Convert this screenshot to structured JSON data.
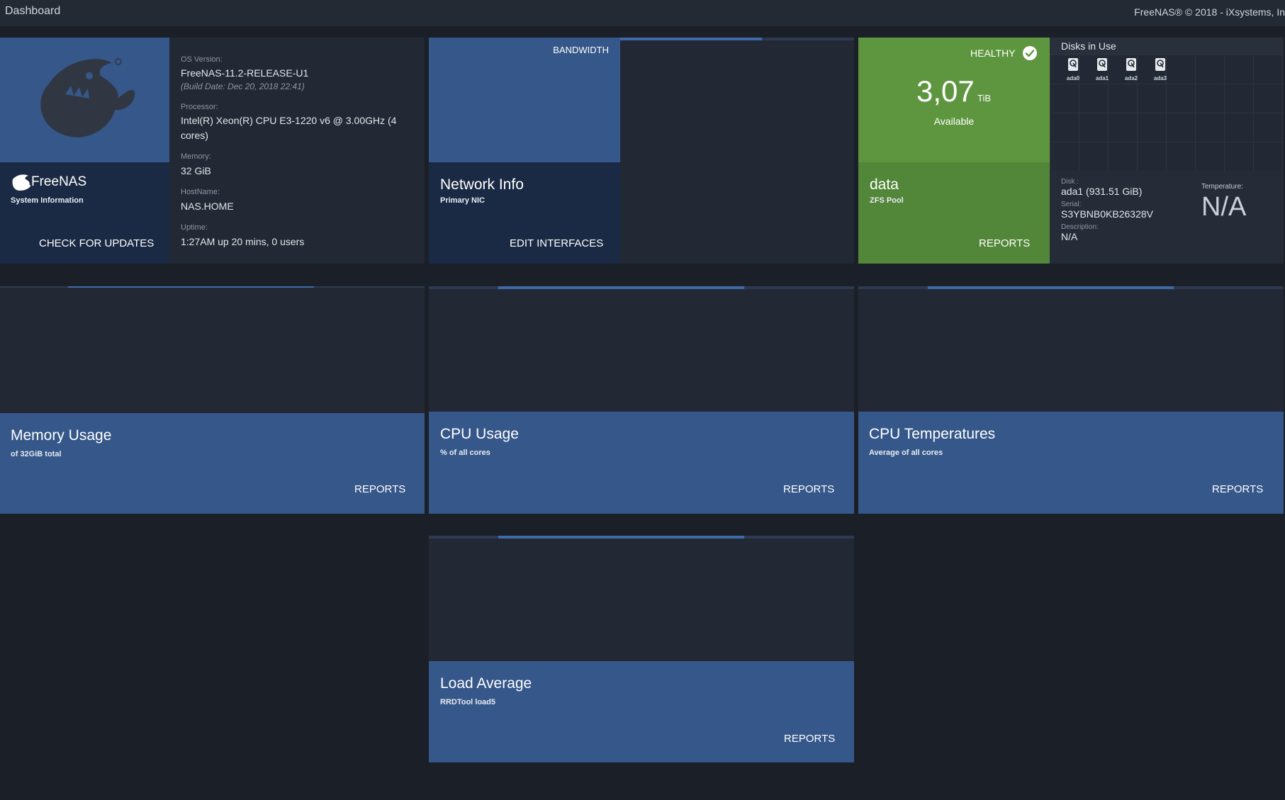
{
  "header": {
    "title": "Dashboard",
    "copyright": "FreeNAS® © 2018 - iXsystems, In"
  },
  "system_info": {
    "brand": "FreeNAS",
    "subtitle": "System Information",
    "check_updates": "CHECK FOR UPDATES",
    "os_version_label": "OS Version:",
    "os_version": "FreeNAS-11.2-RELEASE-U1",
    "build_date": "(Build Date: Dec 20, 2018 22:41)",
    "processor_label": "Processor:",
    "processor_line1": "Intel(R) Xeon(R) CPU E3-1220 v6 @ 3.00GHz (4",
    "processor_line2": "cores)",
    "memory_label": "Memory:",
    "memory": "32 GiB",
    "hostname_label": "HostName:",
    "hostname": "NAS.HOME",
    "uptime_label": "Uptime:",
    "uptime": "1:27AM up 20 mins, 0 users"
  },
  "network": {
    "bandwidth": "BANDWIDTH",
    "title": "Network Info",
    "subtitle": "Primary NIC",
    "edit_button": "EDIT INTERFACES"
  },
  "pool": {
    "status": "HEALTHY",
    "value": "3,07",
    "unit": "TiB",
    "available_label": "Available",
    "name": "data",
    "type": "ZFS Pool",
    "reports": "REPORTS"
  },
  "disks": {
    "title": "Disks in Use",
    "items": [
      "ada0",
      "ada1",
      "ada2",
      "ada3"
    ],
    "disk_label": "Disk :",
    "disk_value": "ada1 (931.51 GiB)",
    "serial_label": "Serial:",
    "serial_value": "S3YBNB0KB26328V",
    "description_label": "Description:",
    "description_value": "N/A",
    "temperature_label": "Temperature:",
    "temperature_value": "N/A"
  },
  "widgets": {
    "memory": {
      "title": "Memory Usage",
      "subtitle": "of 32GiB total",
      "reports": "REPORTS"
    },
    "cpu": {
      "title": "CPU Usage",
      "subtitle": "% of all cores",
      "reports": "REPORTS"
    },
    "cpu_temp": {
      "title": "CPU Temperatures",
      "subtitle": "Average of all cores",
      "reports": "REPORTS"
    },
    "load": {
      "title": "Load Average",
      "subtitle": "RRDTool load5",
      "reports": "REPORTS"
    }
  },
  "colors": {
    "background": "#1b1f27",
    "card": "#232934",
    "blue": "#355789",
    "navy": "#1b2a44",
    "green": "#5e9640",
    "accent": "#3f6aa8"
  }
}
